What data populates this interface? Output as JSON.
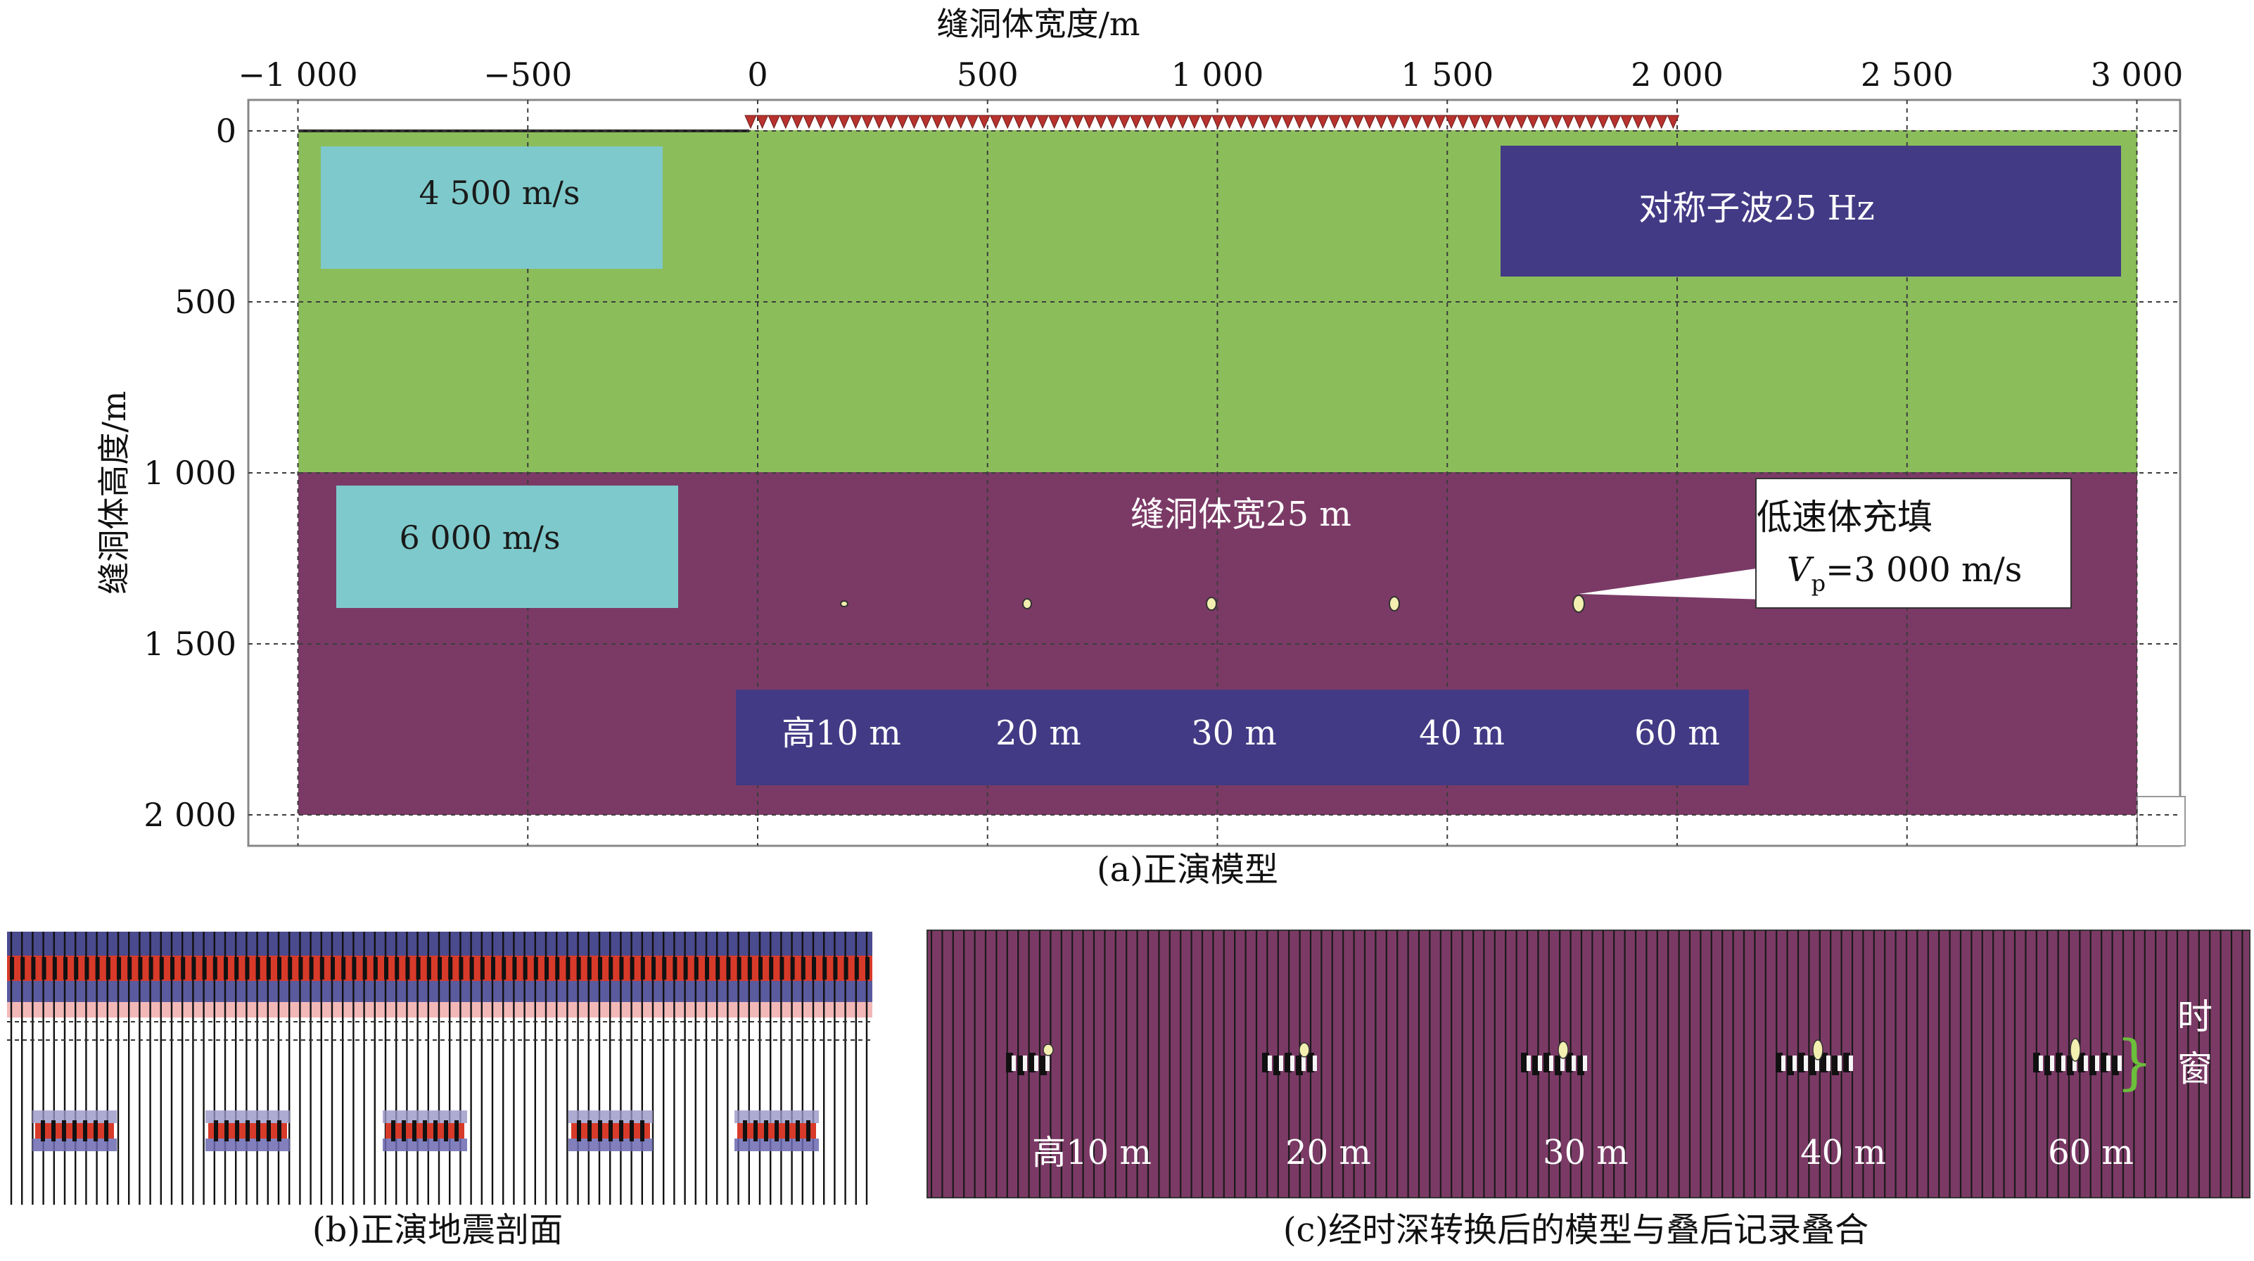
{
  "panel_a": {
    "x_axis_title": "缝洞体宽度/m",
    "y_axis_title": "缝洞体高度/m",
    "x_ticks": [
      "−1 000",
      "−500",
      "0",
      "500",
      "1 000",
      "1 500",
      "2 000",
      "2 500",
      "3 000"
    ],
    "x_tick_values": [
      -1000,
      -500,
      0,
      500,
      1000,
      1500,
      2000,
      2500,
      3000
    ],
    "y_ticks": [
      "0",
      "500",
      "1 000",
      "1 500",
      "2 000"
    ],
    "y_tick_values": [
      0,
      500,
      1000,
      1500,
      2000
    ],
    "upper_layer_velocity": "4 500 m/s",
    "lower_layer_velocity": "6 000 m/s",
    "wavelet_label": "对称子波25 Hz",
    "cave_width_label": "缝洞体宽25 m",
    "callout_title": "低速体充填",
    "callout_vp_symbol": "V",
    "callout_vp_subscript": "p",
    "callout_vp_value": "=3 000 m/s",
    "heights_label": [
      "高10 m",
      "20 m",
      "30 m",
      "40 m",
      "60 m"
    ],
    "caption": "(a)正演模型",
    "colors": {
      "upper_layer": "#8bbe5a",
      "lower_layer": "#7b3a66",
      "velocity_box": "#7ec9cb",
      "label_box": "#433a85"
    }
  },
  "panel_b": {
    "caption": "(b)正演地震剖面"
  },
  "panel_c": {
    "caption": "(c)经时深转换后的模型与叠后记录叠合",
    "heights_label": [
      "高10 m",
      "20 m",
      "30 m",
      "40 m",
      "60 m"
    ],
    "window_label": [
      "时",
      "窗"
    ],
    "bracket": "}"
  }
}
